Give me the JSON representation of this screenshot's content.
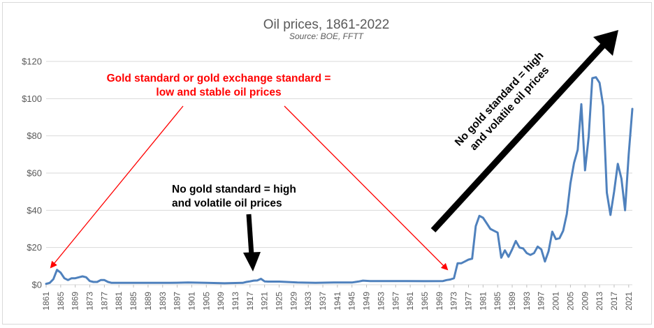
{
  "chart_data": {
    "type": "line",
    "title": "Oil prices, 1861-2022",
    "subtitle": "Source: BOE, FFTT",
    "xlabel": "",
    "ylabel": "",
    "xlim": [
      1861,
      2022
    ],
    "ylim": [
      0,
      120
    ],
    "y_ticks": [
      0,
      20,
      40,
      60,
      80,
      100,
      120
    ],
    "y_tick_labels": [
      "$0",
      "$20",
      "$40",
      "$60",
      "$80",
      "$100",
      "$120"
    ],
    "x_ticks": [
      1861,
      1865,
      1869,
      1873,
      1877,
      1881,
      1885,
      1889,
      1893,
      1897,
      1901,
      1905,
      1909,
      1913,
      1917,
      1921,
      1925,
      1929,
      1933,
      1937,
      1941,
      1945,
      1949,
      1953,
      1957,
      1961,
      1965,
      1969,
      1973,
      1977,
      1981,
      1985,
      1989,
      1993,
      1997,
      2001,
      2005,
      2009,
      2013,
      2017,
      2021
    ],
    "grid": true,
    "legend": "none",
    "line_color": "#4f81bd",
    "series": [
      {
        "x": [
          1861,
          1862,
          1863,
          1864,
          1865,
          1866,
          1867,
          1868,
          1869,
          1870,
          1871,
          1872,
          1873,
          1874,
          1875,
          1876,
          1877,
          1878,
          1879,
          1880,
          1885,
          1890,
          1895,
          1900,
          1905,
          1910,
          1915,
          1916,
          1917,
          1918,
          1919,
          1920,
          1921,
          1922,
          1925,
          1930,
          1935,
          1940,
          1945,
          1946,
          1947,
          1948,
          1950,
          1955,
          1960,
          1965,
          1970,
          1971,
          1972,
          1973,
          1974,
          1975,
          1976,
          1977,
          1978,
          1979,
          1980,
          1981,
          1982,
          1983,
          1984,
          1985,
          1986,
          1987,
          1988,
          1989,
          1990,
          1991,
          1992,
          1993,
          1994,
          1995,
          1996,
          1997,
          1998,
          1999,
          2000,
          2001,
          2002,
          2003,
          2004,
          2005,
          2006,
          2007,
          2008,
          2009,
          2010,
          2011,
          2012,
          2013,
          2014,
          2015,
          2016,
          2017,
          2018,
          2019,
          2020,
          2021,
          2022
        ],
        "values": [
          0.5,
          1.0,
          3.0,
          8.0,
          6.5,
          3.5,
          2.5,
          3.5,
          3.5,
          4.0,
          4.5,
          4.0,
          2.0,
          1.5,
          1.5,
          2.5,
          2.5,
          1.5,
          1.0,
          1.0,
          1.0,
          1.0,
          1.0,
          1.2,
          1.0,
          0.8,
          1.0,
          1.5,
          1.8,
          2.2,
          2.3,
          3.2,
          1.8,
          1.7,
          1.7,
          1.2,
          1.0,
          1.2,
          1.2,
          1.5,
          1.8,
          2.2,
          2.0,
          2.0,
          2.0,
          1.9,
          2.0,
          2.5,
          2.8,
          3.5,
          11.5,
          11.5,
          12.5,
          13.5,
          14.0,
          31.5,
          37.0,
          36.0,
          33.0,
          30.0,
          29.0,
          28.0,
          14.5,
          18.5,
          15.0,
          19.0,
          23.5,
          20.0,
          19.5,
          17.0,
          16.0,
          17.0,
          20.5,
          19.0,
          12.5,
          18.0,
          28.5,
          24.5,
          25.0,
          29.0,
          38.0,
          54.5,
          65.5,
          72.5,
          97.0,
          61.5,
          79.5,
          111.0,
          111.5,
          108.5,
          96.0,
          49.5,
          37.5,
          50.0,
          65.0,
          57.0,
          40.0,
          70.0,
          94.5
        ]
      }
    ],
    "annotations": {
      "red_line1": "Gold standard or gold exchange standard =",
      "red_line2": "low and stable oil prices",
      "mid_line1": "No gold standard = high",
      "mid_line2": "and volatile oil prices",
      "rot_line1": "No gold standard = high",
      "rot_line2": "and volatile oil prices"
    }
  }
}
